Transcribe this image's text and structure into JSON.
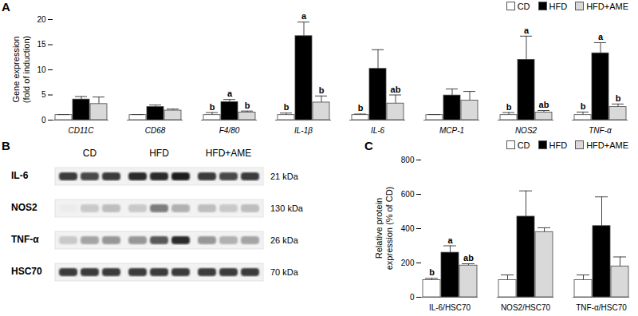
{
  "chart_data": [
    {
      "type": "bar",
      "panel": "A",
      "ylabel": "Gene expression\n(fold of induction)",
      "categories": [
        "CD11C",
        "CD68",
        "F4/80",
        "IL-1β",
        "IL-6",
        "MCP-1",
        "NOS2",
        "TNF-α"
      ],
      "series": [
        {
          "name": "CD",
          "color": "#ffffff",
          "values": [
            1,
            1,
            1,
            1,
            1,
            1,
            1,
            1
          ],
          "errors": [
            0.1,
            0.1,
            0.5,
            0.4,
            0.2,
            0.1,
            0.5,
            0.6
          ],
          "letters": [
            null,
            null,
            "b",
            "b",
            "b",
            null,
            "b",
            "b"
          ]
        },
        {
          "name": "HFD",
          "color": "#000000",
          "values": [
            4.1,
            2.6,
            3.6,
            16.7,
            10.2,
            4.9,
            12.0,
            13.3
          ],
          "errors": [
            0.6,
            0.4,
            0.5,
            2.8,
            3.8,
            1.3,
            4.7,
            2.1
          ],
          "letters": [
            null,
            null,
            "a",
            "a",
            null,
            null,
            "a",
            "a"
          ]
        },
        {
          "name": "HFD+AME",
          "color": "#d9d9d9",
          "values": [
            3.2,
            1.9,
            1.5,
            3.5,
            3.3,
            3.9,
            1.5,
            2.6
          ],
          "errors": [
            1.4,
            0.3,
            0.3,
            1.3,
            1.7,
            1.8,
            0.4,
            0.6
          ],
          "letters": [
            null,
            null,
            "b",
            "b",
            "ab",
            null,
            "ab",
            "b"
          ]
        }
      ],
      "ylim": [
        0,
        20
      ],
      "yticks": [
        0,
        5,
        10,
        15,
        20
      ],
      "legend": "top-right"
    },
    {
      "type": "bar",
      "panel": "C",
      "ylabel": "Relative protein\nexpression (% of CD)",
      "categories": [
        "IL-6/HSC70",
        "NOS2/HSC70",
        "TNF-α/HSC70"
      ],
      "series": [
        {
          "name": "CD",
          "color": "#ffffff",
          "values": [
            100,
            100,
            100
          ],
          "errors": [
            10,
            30,
            30
          ],
          "letters": [
            "b",
            null,
            null
          ]
        },
        {
          "name": "HFD",
          "color": "#000000",
          "values": [
            260,
            470,
            415
          ],
          "errors": [
            40,
            150,
            170
          ],
          "letters": [
            "a",
            null,
            null
          ]
        },
        {
          "name": "HFD+AME",
          "color": "#d9d9d9",
          "values": [
            185,
            380,
            180
          ],
          "errors": [
            10,
            25,
            55
          ],
          "letters": [
            "ab",
            null,
            null
          ]
        }
      ],
      "ylim": [
        0,
        800
      ],
      "yticks": [
        0,
        200,
        400,
        600,
        800
      ],
      "legend": "top-right"
    }
  ],
  "blot": {
    "panel": "B",
    "groups": [
      "CD",
      "HFD",
      "HFD+AME"
    ],
    "rows": [
      {
        "label": "IL-6",
        "size": "21 kDa",
        "intensity": [
          0.85,
          0.8,
          0.85,
          0.9,
          0.9,
          0.95,
          0.85,
          0.8,
          0.85
        ]
      },
      {
        "label": "NOS2",
        "size": "130 kDa",
        "intensity": [
          0.1,
          0.3,
          0.35,
          0.3,
          0.6,
          0.4,
          0.35,
          0.3,
          0.35
        ]
      },
      {
        "label": "TNF-α",
        "size": "26 kDa",
        "intensity": [
          0.3,
          0.45,
          0.5,
          0.5,
          0.75,
          0.9,
          0.5,
          0.4,
          0.45
        ]
      },
      {
        "label": "HSC70",
        "size": "70 kDa",
        "intensity": [
          0.85,
          0.85,
          0.85,
          0.85,
          0.85,
          0.85,
          0.85,
          0.85,
          0.85
        ]
      }
    ]
  }
}
